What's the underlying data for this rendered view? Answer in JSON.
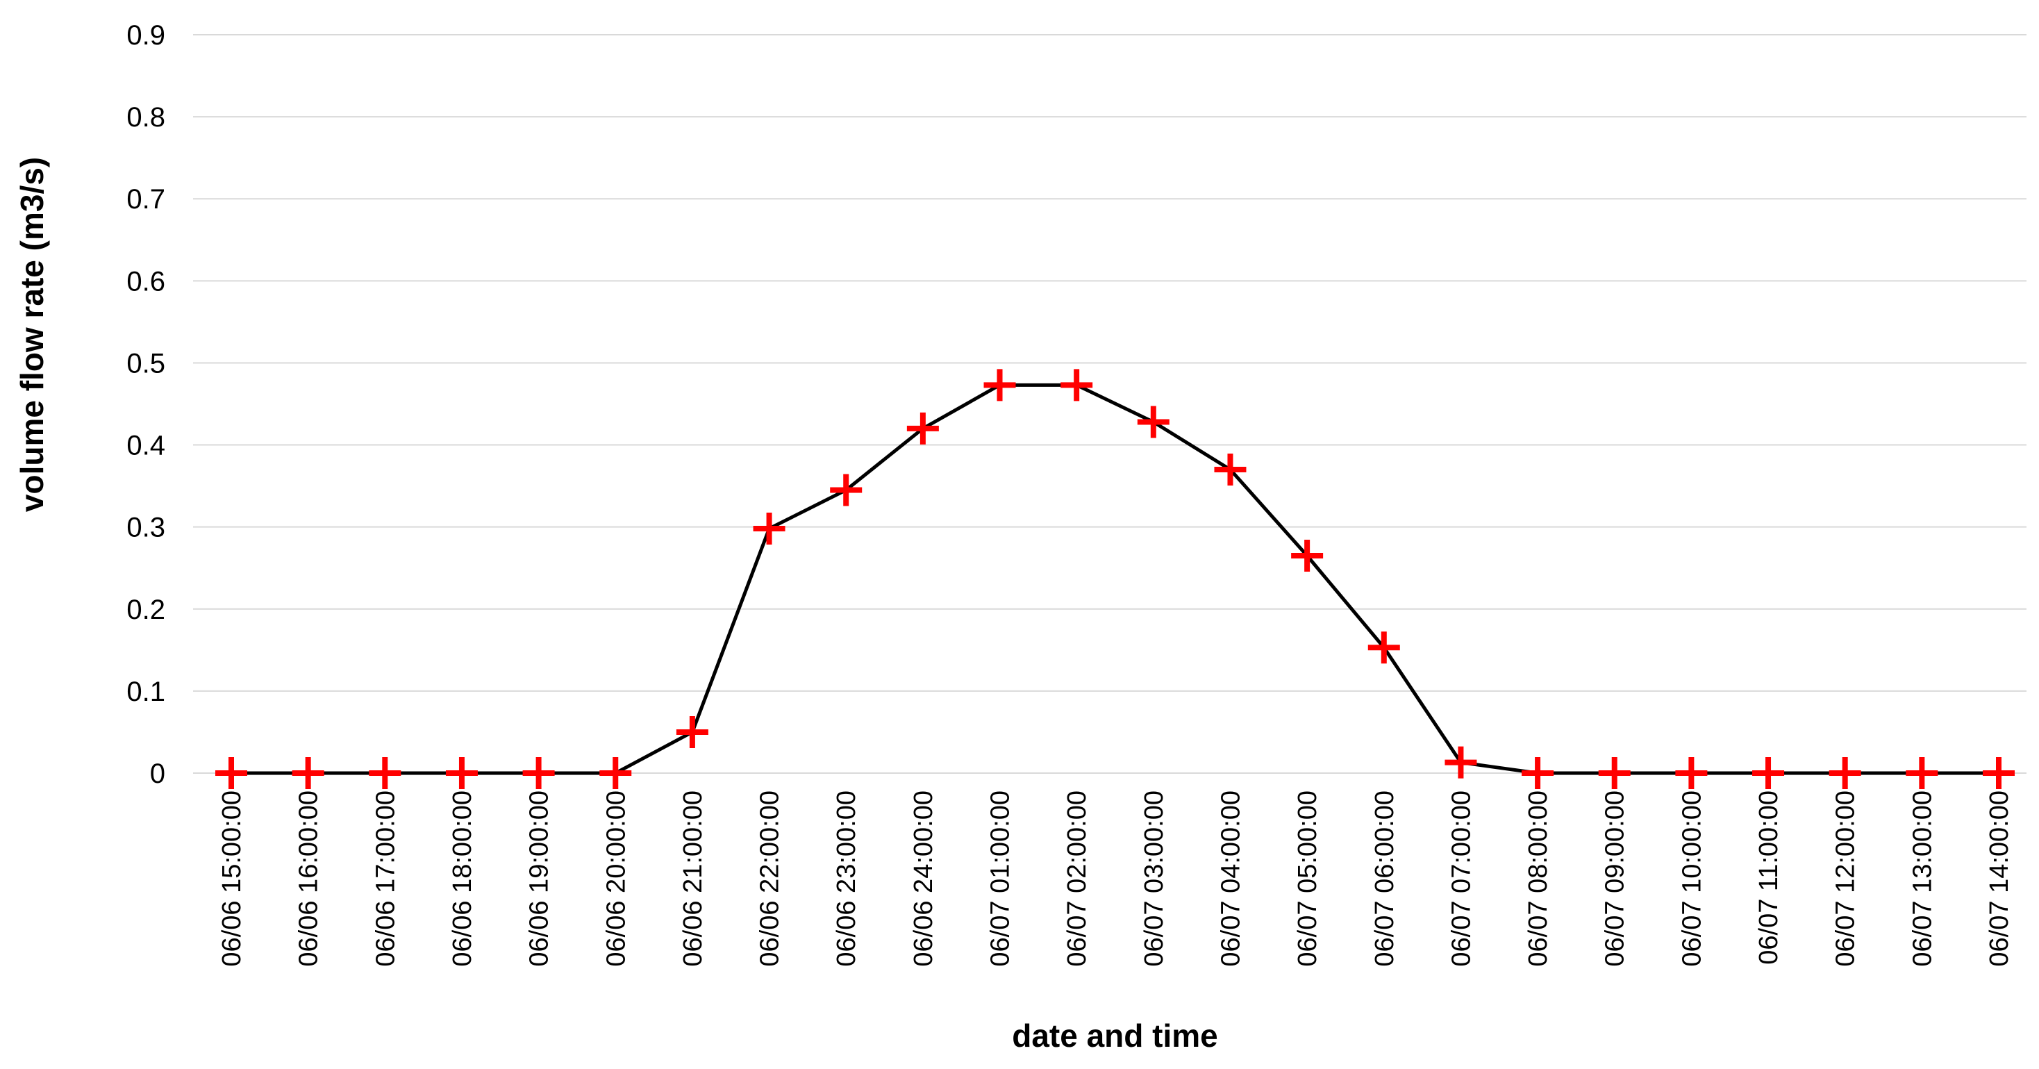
{
  "chart_data": {
    "type": "line",
    "xlabel": "date and time",
    "ylabel": "volume flow rate (m3/s)",
    "ylim": [
      0,
      0.9
    ],
    "yticks": [
      "0",
      "0.1",
      "0.2",
      "0.3",
      "0.4",
      "0.5",
      "0.6",
      "0.7",
      "0.8",
      "0.9"
    ],
    "grid": "horizontal",
    "categories": [
      "06/06  15:00:00",
      "06/06  16:00:00",
      "06/06  17:00:00",
      "06/06  18:00:00",
      "06/06  19:00:00",
      "06/06  20:00:00",
      "06/06  21:00:00",
      "06/06  22:00:00",
      "06/06  23:00:00",
      "06/06  24:00:00",
      "06/07  01:00:00",
      "06/07  02:00:00",
      "06/07  03:00:00",
      "06/07  04:00:00",
      "06/07  05:00:00",
      "06/07  06:00:00",
      "06/07  07:00:00",
      "06/07  08:00:00",
      "06/07  09:00:00",
      "06/07  10:00:00",
      "06/07  11:00:00",
      "06/07  12:00:00",
      "06/07  13:00:00",
      "06/07  14:00:00"
    ],
    "series": [
      {
        "values": [
          0,
          0,
          0,
          0,
          0,
          0,
          0.05,
          0.298,
          0.345,
          0.42,
          0.473,
          0.473,
          0.428,
          0.37,
          0.265,
          0.153,
          0.013,
          0,
          0,
          0,
          0,
          0,
          0,
          0
        ],
        "line_color": "#000000",
        "marker": "plus",
        "marker_color": "#ff0000"
      }
    ]
  }
}
